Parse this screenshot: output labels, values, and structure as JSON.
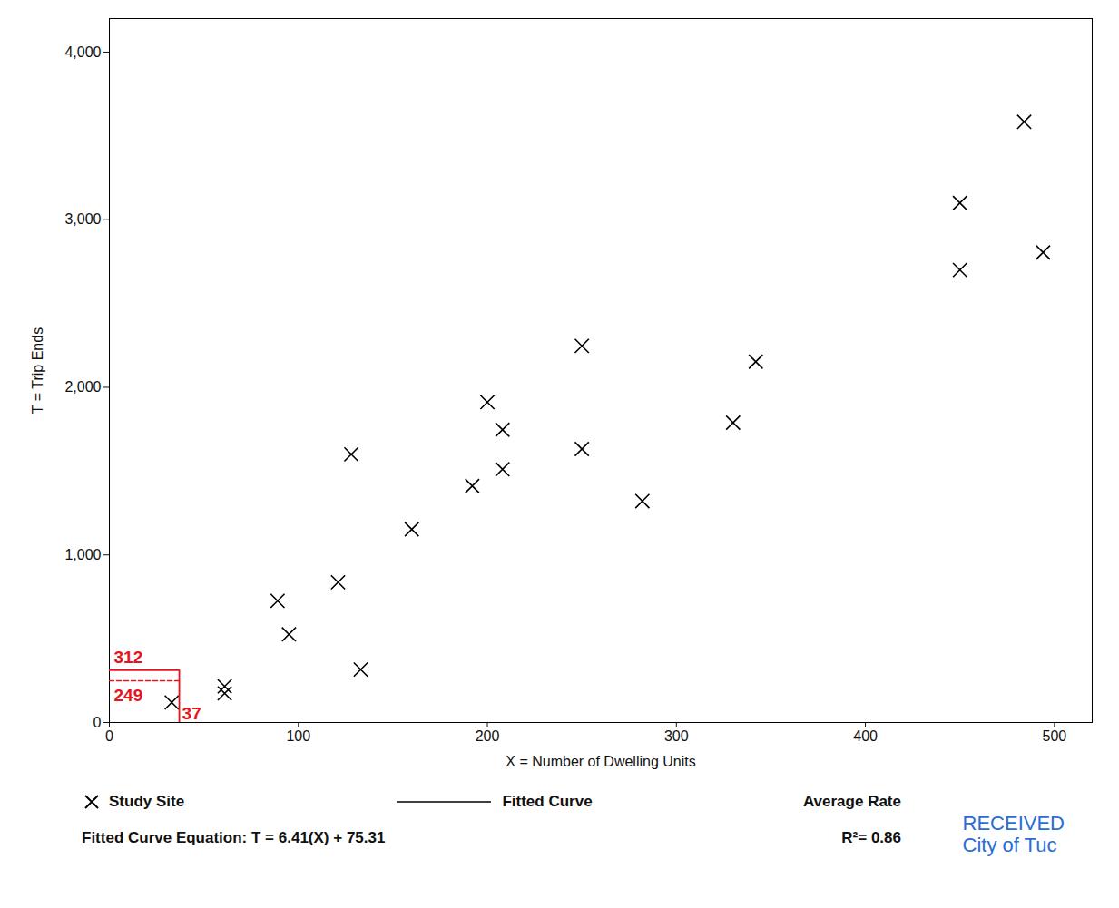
{
  "chart_data": {
    "type": "scatter",
    "x_label": "X = Number of Dwelling Units",
    "y_label": "T = Trip Ends",
    "x": [
      33,
      61,
      61,
      89,
      95,
      121,
      128,
      133,
      160,
      192,
      200,
      208,
      208,
      250,
      250,
      282,
      330,
      342,
      450,
      450,
      494,
      484
    ],
    "values": [
      120,
      216,
      174,
      726,
      526,
      837,
      1600,
      316,
      1153,
      1411,
      1911,
      1747,
      1511,
      2247,
      1632,
      1321,
      1789,
      2153,
      3100,
      2700,
      2805,
      3584
    ],
    "color": "#000000",
    "marker": "x",
    "xlim": [
      0,
      520
    ],
    "xticks": [
      0,
      100,
      200,
      300,
      400,
      500
    ],
    "ylim": [
      0,
      4200
    ],
    "yticks": [
      0,
      {
        "value": 1000,
        "label": "1,000"
      },
      {
        "value": 2000,
        "label": "2,000"
      },
      {
        "value": 3000,
        "label": "3,000"
      },
      {
        "value": 4000,
        "label": "4,000"
      }
    ],
    "grid": false,
    "legend": "bottom",
    "legend_entries": [
      {
        "name": "Study Site",
        "marker": "x"
      },
      {
        "name": "Fitted Curve",
        "line_style": "solid"
      },
      {
        "name": "Average Rate"
      }
    ],
    "equation": "Fitted Curve Equation: T = 6.41(X) + 75.31",
    "r_squared": "R²= 0.86",
    "annotation": {
      "x": 37,
      "y_fitted": 312,
      "y_average": 249,
      "color": "#e8141c"
    },
    "stamp": {
      "lines": [
        "RECEIVED",
        "City of Tuc"
      ],
      "color": "#2b6cd6"
    }
  }
}
